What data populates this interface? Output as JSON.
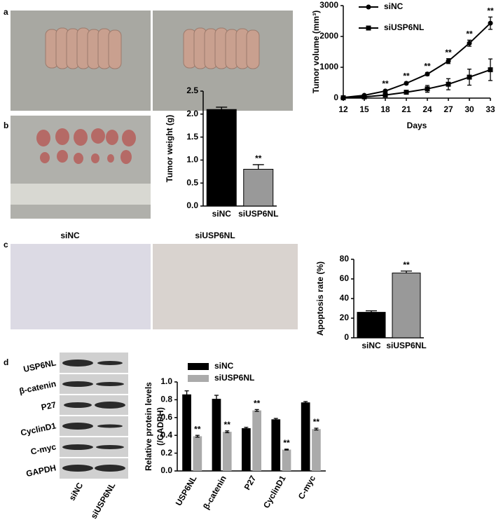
{
  "chart_data": [
    {
      "type": "line",
      "panel": "a",
      "ylabel": "Tumor volume (mm³)",
      "xlabel": "Days",
      "x": [
        12,
        15,
        18,
        21,
        24,
        27,
        30,
        33
      ],
      "xlim": [
        12,
        33
      ],
      "xticks": [
        12,
        15,
        18,
        21,
        24,
        27,
        30,
        33
      ],
      "ylim": [
        0,
        3000
      ],
      "yticks": [
        0,
        1000,
        2000,
        3000
      ],
      "series": [
        {
          "name": "siNC",
          "color": "#000000",
          "marker": "circle",
          "values": [
            20,
            90,
            230,
            480,
            780,
            1200,
            1780,
            2430
          ],
          "errors": [
            20,
            20,
            30,
            40,
            50,
            80,
            100,
            200
          ],
          "significance": [
            null,
            null,
            "**",
            "**",
            "**",
            "**",
            "**",
            "**"
          ]
        },
        {
          "name": "siUSP6NL",
          "color": "#000000",
          "marker": "square",
          "values": [
            10,
            40,
            100,
            190,
            300,
            450,
            680,
            920
          ],
          "errors": [
            10,
            15,
            30,
            60,
            110,
            180,
            260,
            350
          ]
        }
      ]
    },
    {
      "type": "bar",
      "panel": "b",
      "ylabel": "Tumor weight (g)",
      "categories": [
        "siNC",
        "siUSP6NL"
      ],
      "values": [
        2.1,
        0.8
      ],
      "errors": [
        0.05,
        0.1
      ],
      "colors": [
        "#000000",
        "#999999"
      ],
      "significance": [
        null,
        "**"
      ],
      "ylim": [
        0,
        2.5
      ],
      "yticks": [
        {
          "value": 0,
          "label": "0.0"
        },
        0.5,
        {
          "value": 1,
          "label": "1.0"
        },
        1.5,
        {
          "value": 2,
          "label": "2.0"
        },
        2.5
      ]
    },
    {
      "type": "bar",
      "panel": "c",
      "image_labels": [
        "siNC",
        "siUSP6NL"
      ],
      "ylabel": "Apoptosis rate (%)",
      "categories": [
        "siNC",
        "siUSP6NL"
      ],
      "values": [
        26,
        66
      ],
      "errors": [
        1.5,
        2
      ],
      "colors": [
        "#000000",
        "#999999"
      ],
      "significance": [
        null,
        "**"
      ],
      "ylim": [
        0,
        80
      ],
      "yticks": [
        0,
        20,
        40,
        60,
        80
      ]
    },
    {
      "type": "grouped_bar",
      "panel": "d",
      "blot_rows": [
        "USP6NL",
        "β-catenin",
        "P27",
        "CyclinD1",
        "C-myc",
        "GAPDH"
      ],
      "blot_columns": [
        "siNC",
        "siUSP6NL"
      ],
      "ylabel": [
        "Relative protein levels",
        "(/GADPH)"
      ],
      "categories": [
        "USP6NL",
        "β-catenin",
        "P27",
        "CyclinD1",
        "C-myc"
      ],
      "series": [
        {
          "name": "siNC",
          "color": "#000000",
          "values": [
            0.86,
            0.81,
            0.48,
            0.58,
            0.77
          ],
          "errors": [
            0.04,
            0.04,
            0.01,
            0.01,
            0.01
          ]
        },
        {
          "name": "siUSP6NL",
          "color": "#aaaaaa",
          "values": [
            0.39,
            0.44,
            0.68,
            0.24,
            0.47
          ],
          "errors": [
            0.01,
            0.01,
            0.01,
            0.005,
            0.01
          ],
          "significance": [
            "**",
            "**",
            "**",
            "**",
            "**"
          ]
        }
      ],
      "ylim": [
        0,
        1
      ],
      "yticks": [
        {
          "value": 0,
          "label": "0.0"
        },
        0.2,
        0.4,
        0.6,
        0.8,
        {
          "value": 1,
          "label": "1.0"
        }
      ]
    }
  ]
}
